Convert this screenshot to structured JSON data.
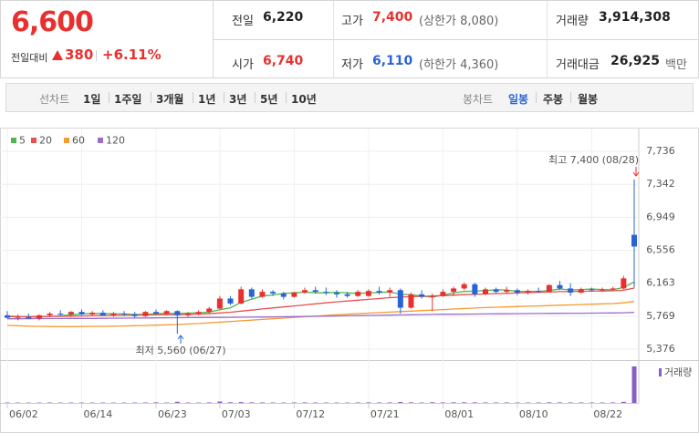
{
  "quote": {
    "price": "6,600",
    "change_label": "전일대비",
    "change": "380",
    "change_rate": "+6.11%"
  },
  "stats": [
    {
      "label": "전일",
      "value": "6,220",
      "color": "#222222"
    },
    {
      "label": "고가",
      "value": "7,400",
      "note": "(상한가 8,080)",
      "color": "#e8312f"
    },
    {
      "label": "거래량",
      "value": "3,914,308",
      "color": "#222222"
    },
    {
      "label": "시가",
      "value": "6,740",
      "color": "#e8312f"
    },
    {
      "label": "저가",
      "value": "6,110",
      "note": "(하한가 4,360)",
      "color": "#2a63d6"
    },
    {
      "label": "거래대금",
      "value": "26,925",
      "note": "백만",
      "color": "#222222"
    }
  ],
  "tabs": {
    "line_label": "선차트",
    "line_tabs": [
      "1일",
      "1주일",
      "3개월",
      "1년",
      "3년",
      "5년",
      "10년"
    ],
    "candle_label": "봉차트",
    "candle_tabs": [
      "일봉",
      "주봉",
      "월봉"
    ]
  },
  "chart_data": {
    "type": "candlestick",
    "categories": [
      "06/02",
      null,
      null,
      null,
      null,
      null,
      null,
      "06/14",
      null,
      null,
      null,
      null,
      null,
      null,
      "06/23",
      null,
      null,
      null,
      null,
      null,
      "07/03",
      null,
      null,
      null,
      null,
      null,
      null,
      "07/12",
      null,
      null,
      null,
      null,
      null,
      null,
      "07/21",
      null,
      null,
      null,
      null,
      null,
      null,
      "08/01",
      null,
      null,
      null,
      null,
      null,
      null,
      "08/10",
      null,
      null,
      null,
      null,
      null,
      null,
      "08/22",
      null,
      null,
      null,
      null
    ],
    "open": [
      5780,
      5750,
      5760,
      5740,
      5780,
      5800,
      5790,
      5820,
      5790,
      5810,
      5780,
      5800,
      5790,
      5770,
      5820,
      5800,
      5830,
      5780,
      5800,
      5820,
      5860,
      5980,
      5920,
      6090,
      6000,
      6060,
      6040,
      6000,
      6050,
      6080,
      6060,
      6050,
      6030,
      6010,
      6010,
      6070,
      6050,
      6080,
      5870,
      6030,
      6000,
      6010,
      6060,
      6100,
      6150,
      6030,
      6090,
      6060,
      6080,
      6050,
      6070,
      6060,
      6140,
      6100,
      6050,
      6090,
      6080,
      6090,
      6100,
      6740
    ],
    "high": [
      5830,
      5790,
      5800,
      5790,
      5820,
      5840,
      5830,
      5850,
      5830,
      5840,
      5820,
      5830,
      5820,
      5830,
      5850,
      5840,
      5840,
      5820,
      5840,
      5880,
      6010,
      6010,
      6120,
      6110,
      6090,
      6080,
      6060,
      6060,
      6110,
      6120,
      6110,
      6080,
      6060,
      6080,
      6090,
      6120,
      6110,
      6100,
      6050,
      6080,
      6040,
      6090,
      6120,
      6170,
      6170,
      6110,
      6110,
      6120,
      6100,
      6090,
      6110,
      6150,
      6190,
      6160,
      6110,
      6110,
      6110,
      6120,
      6250,
      7400
    ],
    "low": [
      5740,
      5720,
      5740,
      5720,
      5760,
      5770,
      5760,
      5780,
      5770,
      5780,
      5760,
      5770,
      5750,
      5760,
      5790,
      5780,
      5560,
      5760,
      5780,
      5800,
      5850,
      5900,
      5910,
      5980,
      5990,
      6010,
      5970,
      5990,
      6040,
      6040,
      6020,
      5990,
      5990,
      6000,
      6000,
      6030,
      6000,
      5800,
      5860,
      5980,
      5830,
      6000,
      6010,
      6080,
      6000,
      6020,
      6040,
      6040,
      6020,
      6030,
      6050,
      6050,
      6080,
      6010,
      6040,
      6060,
      6060,
      6070,
      6090,
      6110
    ],
    "close": [
      5750,
      5760,
      5740,
      5780,
      5800,
      5790,
      5820,
      5790,
      5810,
      5780,
      5800,
      5790,
      5770,
      5820,
      5800,
      5830,
      5780,
      5800,
      5820,
      5860,
      5980,
      5920,
      6090,
      6000,
      6060,
      6040,
      6000,
      6050,
      6080,
      6060,
      6050,
      6030,
      6010,
      6060,
      6070,
      6050,
      6080,
      5870,
      6030,
      6000,
      6010,
      6060,
      6100,
      6150,
      6030,
      6090,
      6060,
      6080,
      6050,
      6070,
      6060,
      6140,
      6100,
      6050,
      6090,
      6080,
      6090,
      6100,
      6220,
      6600
    ],
    "up_color": "#e8312f",
    "down_color": "#2a63d6",
    "series": [
      {
        "name": "5",
        "color": "#4cb84c",
        "values": [
          5770,
          5765,
          5760,
          5760,
          5766,
          5774,
          5786,
          5796,
          5802,
          5800,
          5798,
          5796,
          5790,
          5790,
          5797,
          5804,
          5800,
          5806,
          5810,
          5818,
          5846,
          5870,
          5934,
          5972,
          6010,
          6022,
          6040,
          6048,
          6056,
          6048,
          6048,
          6054,
          6046,
          6042,
          6046,
          6052,
          6058,
          6030,
          6024,
          6010,
          5996,
          6022,
          6046,
          6064,
          6068,
          6074,
          6084,
          6082,
          6064,
          6066,
          6066,
          6076,
          6094,
          6084,
          6086,
          6094,
          6086,
          6084,
          6112,
          6178
        ]
      },
      {
        "name": "20",
        "color": "#e8504f",
        "values": [
          5762,
          5762,
          5764,
          5765,
          5766,
          5768,
          5770,
          5772,
          5774,
          5776,
          5778,
          5780,
          5782,
          5784,
          5786,
          5788,
          5786,
          5790,
          5794,
          5798,
          5808,
          5816,
          5830,
          5842,
          5856,
          5868,
          5880,
          5892,
          5904,
          5916,
          5928,
          5940,
          5950,
          5960,
          5970,
          5980,
          5990,
          5996,
          6002,
          6006,
          6010,
          6014,
          6020,
          6026,
          6030,
          6034,
          6038,
          6042,
          6046,
          6050,
          6054,
          6058,
          6062,
          6064,
          6066,
          6068,
          6070,
          6072,
          6080,
          6105
        ]
      },
      {
        "name": "60",
        "color": "#f59a32",
        "values": [
          5660,
          5655,
          5650,
          5648,
          5646,
          5645,
          5645,
          5646,
          5647,
          5648,
          5650,
          5652,
          5655,
          5658,
          5662,
          5666,
          5670,
          5676,
          5682,
          5690,
          5698,
          5706,
          5714,
          5722,
          5730,
          5738,
          5746,
          5754,
          5762,
          5770,
          5778,
          5786,
          5794,
          5800,
          5806,
          5812,
          5818,
          5824,
          5830,
          5836,
          5842,
          5848,
          5854,
          5860,
          5866,
          5872,
          5876,
          5880,
          5884,
          5888,
          5892,
          5896,
          5900,
          5904,
          5908,
          5912,
          5916,
          5920,
          5928,
          5945
        ]
      },
      {
        "name": "120",
        "color": "#9a6cd0",
        "values": [
          5738,
          5738,
          5739,
          5740,
          5740,
          5741,
          5742,
          5742,
          5743,
          5744,
          5745,
          5746,
          5747,
          5748,
          5749,
          5750,
          5751,
          5752,
          5753,
          5754,
          5755,
          5756,
          5757,
          5758,
          5759,
          5760,
          5762,
          5764,
          5766,
          5768,
          5770,
          5772,
          5774,
          5776,
          5778,
          5780,
          5782,
          5784,
          5786,
          5788,
          5790,
          5792,
          5793,
          5794,
          5795,
          5796,
          5797,
          5798,
          5799,
          5800,
          5801,
          5802,
          5803,
          5804,
          5805,
          5806,
          5807,
          5808,
          5810,
          5814
        ]
      }
    ],
    "ylim": [
      5376,
      7736
    ],
    "yticks": [
      {
        "value": 5376,
        "label": "5,376"
      },
      {
        "value": 5769,
        "label": "5,769"
      },
      {
        "value": 6163,
        "label": "6,163"
      },
      {
        "value": 6556,
        "label": "6,556"
      },
      {
        "value": 6949,
        "label": "6,949"
      },
      {
        "value": 7342,
        "label": "7,342"
      },
      {
        "value": 7736,
        "label": "7,736"
      }
    ],
    "grid": true,
    "annotations": [
      "최고 7,400 (08/28)",
      "최저 5,560 (06/27)"
    ],
    "volume": {
      "name": "거래량",
      "color": "#8a5cc6",
      "ylim": [
        0,
        4300000
      ],
      "values": [
        42000,
        38000,
        35000,
        40000,
        45000,
        36000,
        41000,
        39000,
        37000,
        40000,
        36000,
        38000,
        42000,
        44000,
        60000,
        40000,
        120000,
        45000,
        38000,
        52000,
        150000,
        70000,
        90000,
        60000,
        50000,
        45000,
        40000,
        48000,
        52000,
        46000,
        40000,
        42000,
        38000,
        50000,
        55000,
        47000,
        52000,
        95000,
        60000,
        45000,
        70000,
        55000,
        60000,
        65000,
        58000,
        50000,
        45000,
        48000,
        44000,
        42000,
        46000,
        60000,
        55000,
        50000,
        48000,
        45000,
        44000,
        50000,
        110000,
        3914308
      ]
    }
  }
}
